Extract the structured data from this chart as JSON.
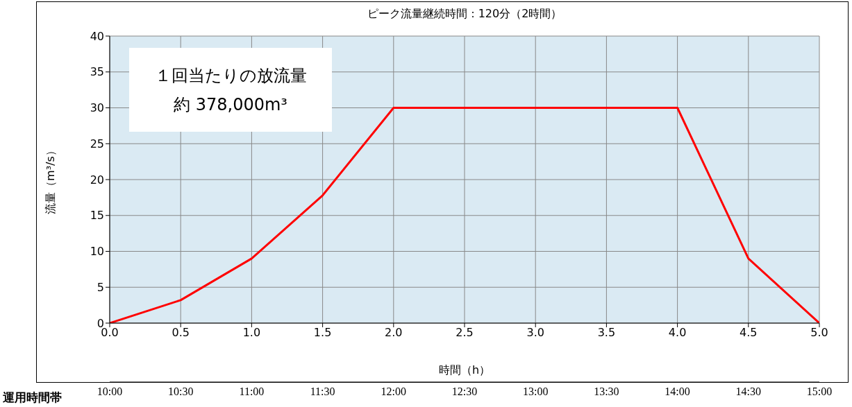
{
  "chart_data": {
    "type": "line",
    "title": "ピーク流量継続時間：120分（2時間）",
    "xlabel": "時間（h）",
    "ylabel": "流量（m³/s）",
    "x": [
      0,
      0.5,
      1.0,
      1.5,
      2.0,
      4.0,
      4.5,
      5.0
    ],
    "series": [
      {
        "color": "#ff0000",
        "values": [
          0,
          3.2,
          9,
          17.8,
          30,
          30,
          9,
          0
        ]
      }
    ],
    "xlim": [
      0,
      5
    ],
    "xticks": [
      {
        "value": 0,
        "label": "0.0"
      },
      {
        "value": 0.5,
        "label": "0.5"
      },
      {
        "value": 1,
        "label": "1.0"
      },
      {
        "value": 1.5,
        "label": "1.5"
      },
      {
        "value": 2,
        "label": "2.0"
      },
      {
        "value": 2.5,
        "label": "2.5"
      },
      {
        "value": 3,
        "label": "3.0"
      },
      {
        "value": 3.5,
        "label": "3.5"
      },
      {
        "value": 4,
        "label": "4.0"
      },
      {
        "value": 4.5,
        "label": "4.5"
      },
      {
        "value": 5,
        "label": "5.0"
      }
    ],
    "ylim": [
      0,
      40
    ],
    "yticks": [
      0,
      5,
      10,
      15,
      20,
      25,
      30,
      35,
      40
    ],
    "x2label": "運用時間帯",
    "x2lim": [
      10,
      15
    ],
    "x2ticks": [
      {
        "value": 10,
        "label": "10:00"
      },
      {
        "value": 10.5,
        "label": "10:30"
      },
      {
        "value": 11,
        "label": "11:00"
      },
      {
        "value": 11.5,
        "label": "11:30"
      },
      {
        "value": 12,
        "label": "12:00"
      },
      {
        "value": 12.5,
        "label": "12:30"
      },
      {
        "value": 13,
        "label": "13:00"
      },
      {
        "value": 13.5,
        "label": "13:30"
      },
      {
        "value": 14,
        "label": "14:00"
      },
      {
        "value": 14.5,
        "label": "14:30"
      },
      {
        "value": 15,
        "label": "15:00"
      }
    ],
    "annotations": [
      "１回当たりの放流量",
      "約 378,000m³"
    ],
    "grid": true,
    "legend": false,
    "marker": "none",
    "line_style": "solid"
  }
}
